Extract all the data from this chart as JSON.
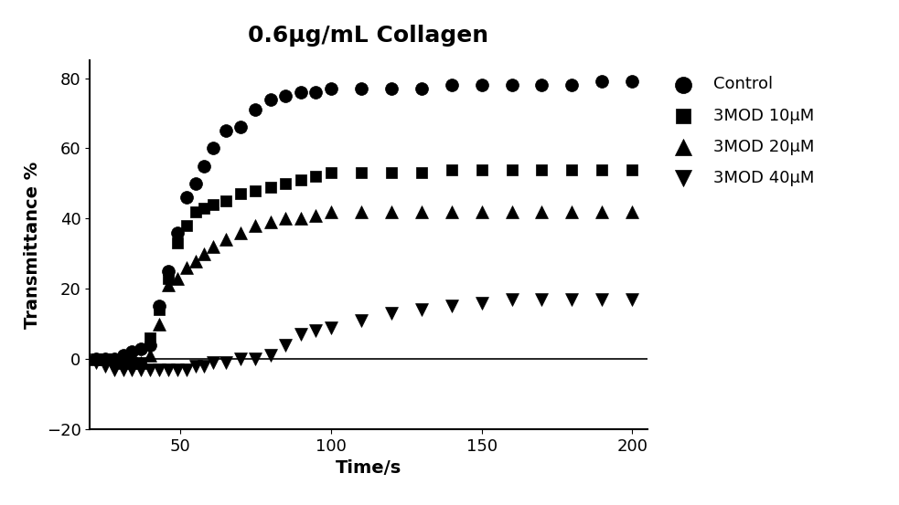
{
  "title": "0.6μg/mL Collagen",
  "xlabel": "Time/s",
  "ylabel": "Transmittance %",
  "xlim": [
    20,
    205
  ],
  "ylim": [
    -20,
    85
  ],
  "xticks": [
    50,
    100,
    150,
    200
  ],
  "yticks": [
    -20,
    0,
    20,
    40,
    60,
    80
  ],
  "series": [
    {
      "label": "Control",
      "marker": "o",
      "color": "#000000",
      "markersize": 10,
      "x": [
        22,
        25,
        28,
        31,
        34,
        37,
        40,
        43,
        46,
        49,
        52,
        55,
        58,
        61,
        65,
        70,
        75,
        80,
        85,
        90,
        95,
        100,
        110,
        120,
        130,
        140,
        150,
        160,
        170,
        180,
        190,
        200
      ],
      "y": [
        0,
        0,
        0,
        1,
        2,
        3,
        4,
        15,
        25,
        36,
        46,
        50,
        55,
        60,
        65,
        66,
        71,
        74,
        75,
        76,
        76,
        77,
        77,
        77,
        77,
        78,
        78,
        78,
        78,
        78,
        79,
        79
      ]
    },
    {
      "label": "3MOD 10μM",
      "marker": "s",
      "color": "#000000",
      "markersize": 9,
      "x": [
        22,
        25,
        28,
        31,
        34,
        37,
        40,
        43,
        46,
        49,
        52,
        55,
        58,
        61,
        65,
        70,
        75,
        80,
        85,
        90,
        95,
        100,
        110,
        120,
        130,
        140,
        150,
        160,
        170,
        180,
        190,
        200
      ],
      "y": [
        0,
        0,
        0,
        -1,
        -1,
        -1,
        6,
        14,
        23,
        33,
        38,
        42,
        43,
        44,
        45,
        47,
        48,
        49,
        50,
        51,
        52,
        53,
        53,
        53,
        53,
        54,
        54,
        54,
        54,
        54,
        54,
        54
      ]
    },
    {
      "label": "3MOD 20μM",
      "marker": "^",
      "color": "#000000",
      "markersize": 10,
      "x": [
        22,
        25,
        28,
        31,
        34,
        37,
        40,
        43,
        46,
        49,
        52,
        55,
        58,
        61,
        65,
        70,
        75,
        80,
        85,
        90,
        95,
        100,
        110,
        120,
        130,
        140,
        150,
        160,
        170,
        180,
        190,
        200
      ],
      "y": [
        0,
        0,
        0,
        -1,
        -1,
        -1,
        1,
        10,
        21,
        23,
        26,
        28,
        30,
        32,
        34,
        36,
        38,
        39,
        40,
        40,
        41,
        42,
        42,
        42,
        42,
        42,
        42,
        42,
        42,
        42,
        42,
        42
      ]
    },
    {
      "label": "3MOD 40μM",
      "marker": "v",
      "color": "#000000",
      "markersize": 10,
      "x": [
        22,
        25,
        28,
        31,
        34,
        37,
        40,
        43,
        46,
        49,
        52,
        55,
        58,
        61,
        65,
        70,
        75,
        80,
        85,
        90,
        95,
        100,
        110,
        120,
        130,
        140,
        150,
        160,
        170,
        180,
        190,
        200
      ],
      "y": [
        -1,
        -2,
        -3,
        -3,
        -3,
        -3,
        -3,
        -3,
        -3,
        -3,
        -3,
        -2,
        -2,
        -1,
        -1,
        0,
        0,
        1,
        4,
        7,
        8,
        9,
        11,
        13,
        14,
        15,
        16,
        17,
        17,
        17,
        17,
        17
      ]
    }
  ],
  "title_fontsize": 18,
  "label_fontsize": 14,
  "tick_fontsize": 13,
  "legend_fontsize": 13,
  "background_color": "#ffffff"
}
